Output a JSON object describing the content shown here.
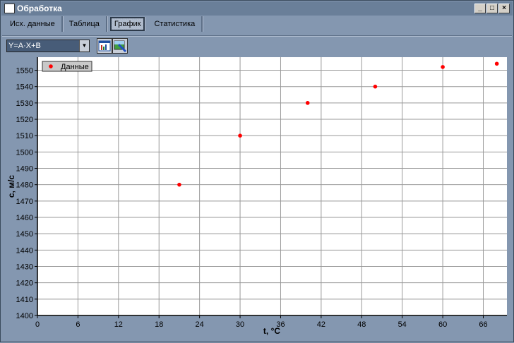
{
  "window": {
    "title": "Обработка",
    "min": "_",
    "max": "□",
    "close": "×"
  },
  "tabs": [
    {
      "label": "Исх. данные"
    },
    {
      "label": "Таблица"
    },
    {
      "label": "График",
      "active": true
    },
    {
      "label": "Статистика"
    }
  ],
  "toolbar": {
    "formula": "Y=A·X+B",
    "chart_button_icon": "bar-chart-icon",
    "image_button_icon": "picture-brush-icon"
  },
  "chart_data": {
    "type": "scatter",
    "xlabel": "t, °C",
    "ylabel": "c, м/с",
    "xlim": [
      0,
      69.5
    ],
    "ylim": [
      1400,
      1558
    ],
    "xticks": [
      0,
      6,
      12,
      18,
      24,
      30,
      36,
      42,
      48,
      54,
      60,
      66
    ],
    "yticks": [
      1400,
      1410,
      1420,
      1430,
      1440,
      1450,
      1460,
      1470,
      1480,
      1490,
      1500,
      1510,
      1520,
      1530,
      1540,
      1550
    ],
    "grid": true,
    "legend_placement": "top-left",
    "series": [
      {
        "name": "Данные",
        "color": "#ff0000",
        "x": [
          21,
          30,
          40,
          50,
          60,
          68
        ],
        "y": [
          1480,
          1510,
          1530,
          1540,
          1552,
          1554
        ]
      }
    ]
  }
}
